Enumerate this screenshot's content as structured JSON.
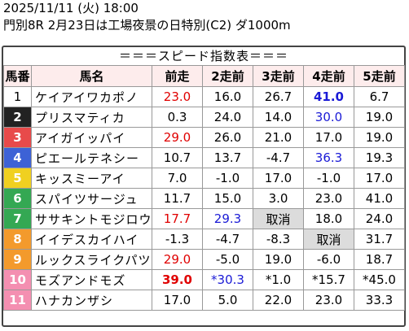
{
  "header": {
    "datetime": "2025/11/11 (火) 18:00",
    "race": "門別8R 2月23日は工場夜景の日特別(C2) ダ1000m"
  },
  "banner": "＝＝＝スピード指数表＝＝＝",
  "columns": [
    "馬番",
    "馬名",
    "前走",
    "2走前",
    "3走前",
    "4走前",
    "5走前"
  ],
  "colors": {
    "post": [
      "#ffffff",
      "#222222",
      "#e84a4a",
      "#3d62d6",
      "#f0d020",
      "#34a853",
      "#f39a2c",
      "#f48fb1"
    ]
  },
  "rows": [
    {
      "num": "1",
      "frame": 1,
      "name": "ケイアイワカポノ",
      "cells": [
        {
          "v": "23.0",
          "c": "red"
        },
        {
          "v": "16.0"
        },
        {
          "v": "26.7"
        },
        {
          "v": "41.0",
          "c": "blue",
          "b": true
        },
        {
          "v": "6.7"
        }
      ]
    },
    {
      "num": "2",
      "frame": 2,
      "name": "プリスマティカ",
      "cells": [
        {
          "v": "0.3"
        },
        {
          "v": "24.0"
        },
        {
          "v": "14.0"
        },
        {
          "v": "30.0",
          "c": "blue"
        },
        {
          "v": "19.0"
        }
      ]
    },
    {
      "num": "3",
      "frame": 3,
      "name": "アイガイッパイ",
      "cells": [
        {
          "v": "29.0",
          "c": "red"
        },
        {
          "v": "26.0"
        },
        {
          "v": "21.0"
        },
        {
          "v": "17.0"
        },
        {
          "v": "19.0"
        }
      ]
    },
    {
      "num": "4",
      "frame": 4,
      "name": "ピエールテネシー",
      "cells": [
        {
          "v": "10.7"
        },
        {
          "v": "13.7"
        },
        {
          "v": "-4.7"
        },
        {
          "v": "36.3",
          "c": "blue"
        },
        {
          "v": "19.3"
        }
      ]
    },
    {
      "num": "5",
      "frame": 5,
      "name": "キッスミーアイ",
      "cells": [
        {
          "v": "7.0"
        },
        {
          "v": "-1.0"
        },
        {
          "v": "17.0"
        },
        {
          "v": "-1.0"
        },
        {
          "v": "17.0"
        }
      ]
    },
    {
      "num": "6",
      "frame": 6,
      "name": "スパイツサージュ",
      "cells": [
        {
          "v": "11.7"
        },
        {
          "v": "15.0"
        },
        {
          "v": "3.0"
        },
        {
          "v": "23.0"
        },
        {
          "v": "41.0"
        }
      ]
    },
    {
      "num": "7",
      "frame": 6,
      "name": "ササキントモジロウ",
      "cells": [
        {
          "v": "17.7",
          "c": "red"
        },
        {
          "v": "29.3",
          "c": "blue"
        },
        {
          "v": "取消",
          "g": true
        },
        {
          "v": "18.0"
        },
        {
          "v": "24.0"
        }
      ]
    },
    {
      "num": "8",
      "frame": 7,
      "name": "イイデスカイハイ",
      "cells": [
        {
          "v": "-1.3"
        },
        {
          "v": "-4.7"
        },
        {
          "v": "-8.3"
        },
        {
          "v": "取消",
          "g": true
        },
        {
          "v": "31.7"
        }
      ]
    },
    {
      "num": "9",
      "frame": 7,
      "name": "ルックスライクパツ",
      "cells": [
        {
          "v": "29.0",
          "c": "red"
        },
        {
          "v": "-5.0"
        },
        {
          "v": "19.0"
        },
        {
          "v": "-6.0"
        },
        {
          "v": "18.7"
        }
      ]
    },
    {
      "num": "10",
      "frame": 8,
      "name": "モズアンドモズ",
      "cells": [
        {
          "v": "39.0",
          "c": "red",
          "b": true
        },
        {
          "v": "*30.3",
          "c": "blue"
        },
        {
          "v": "*1.0"
        },
        {
          "v": "*15.7"
        },
        {
          "v": "*45.0"
        }
      ]
    },
    {
      "num": "11",
      "frame": 8,
      "name": "ハナカンザシ",
      "cells": [
        {
          "v": "17.0"
        },
        {
          "v": "5.0"
        },
        {
          "v": "22.0"
        },
        {
          "v": "23.0"
        },
        {
          "v": "33.3"
        }
      ]
    }
  ]
}
